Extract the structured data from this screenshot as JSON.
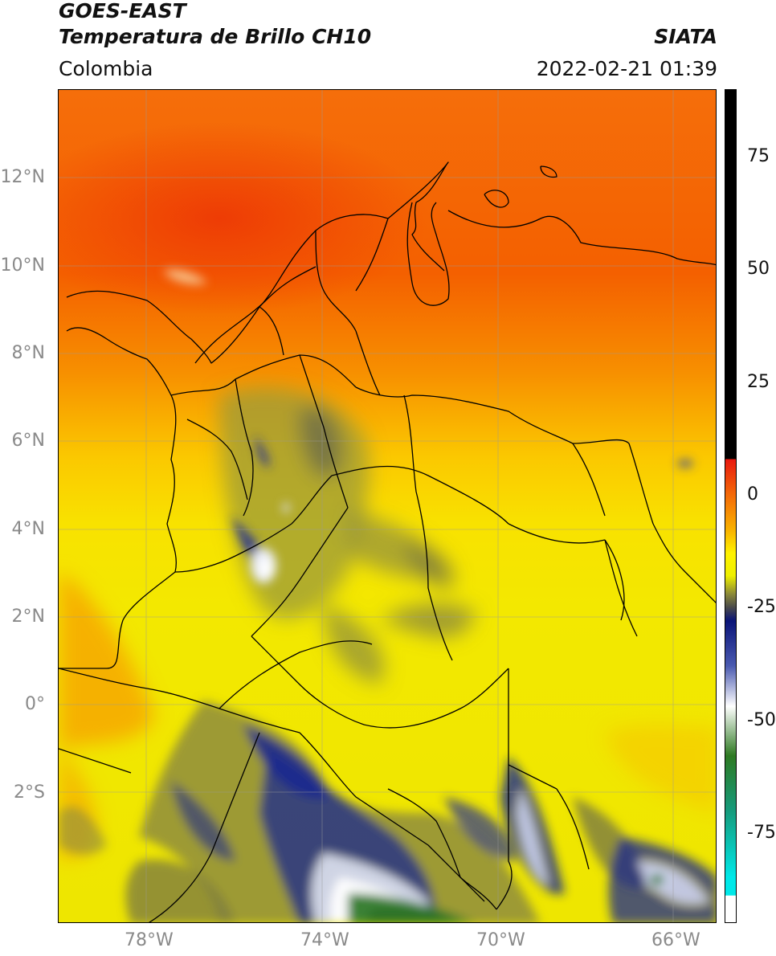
{
  "header": {
    "satellite": "GOES-EAST",
    "product": "Temperatura de Brillo CH10",
    "region": "Colombia",
    "agency": "SIATA",
    "datetime": "2022-02-21 01:39"
  },
  "map": {
    "lon_range": [
      -80,
      -65
    ],
    "lat_range": [
      -5,
      14
    ],
    "x_ticks": [
      {
        "lon": -78,
        "label": "78°W"
      },
      {
        "lon": -74,
        "label": "74°W"
      },
      {
        "lon": -70,
        "label": "70°W"
      },
      {
        "lon": -66,
        "label": "66°W"
      }
    ],
    "y_ticks": [
      {
        "lat": 12,
        "label": "12°N"
      },
      {
        "lat": 10,
        "label": "10°N"
      },
      {
        "lat": 8,
        "label": "8°N"
      },
      {
        "lat": 6,
        "label": "6°N"
      },
      {
        "lat": 4,
        "label": "4°N"
      },
      {
        "lat": 2,
        "label": "2°N"
      },
      {
        "lat": 0,
        "label": "0°"
      },
      {
        "lat": -2,
        "label": "2°S"
      }
    ],
    "gridlines": true
  },
  "colorbar": {
    "ticks": [
      {
        "value": 75,
        "label": "75"
      },
      {
        "value": 50,
        "label": "50"
      },
      {
        "value": 25,
        "label": "25"
      },
      {
        "value": 0,
        "label": "0"
      },
      {
        "value": -25,
        "label": "-25"
      },
      {
        "value": -50,
        "label": "-50"
      },
      {
        "value": -75,
        "label": "-75"
      }
    ],
    "range": [
      -95,
      90
    ],
    "stops": [
      {
        "value": 90,
        "color": "#000000"
      },
      {
        "value": 8,
        "color": "#000000"
      },
      {
        "value": 7.9,
        "color": "#e8190f"
      },
      {
        "value": 0,
        "color": "#f46a08"
      },
      {
        "value": -8,
        "color": "#f9b400"
      },
      {
        "value": -13,
        "color": "#fff200"
      },
      {
        "value": -18,
        "color": "#eef000"
      },
      {
        "value": -22,
        "color": "#8c8a38"
      },
      {
        "value": -25,
        "color": "#4a4a4a"
      },
      {
        "value": -28,
        "color": "#0a1478"
      },
      {
        "value": -38,
        "color": "#4a5ab0"
      },
      {
        "value": -47,
        "color": "#ffffff"
      },
      {
        "value": -58,
        "color": "#2e7a22"
      },
      {
        "value": -70,
        "color": "#169a7a"
      },
      {
        "value": -85,
        "color": "#00e8e8"
      },
      {
        "value": -89,
        "color": "#00e8e8"
      },
      {
        "value": -89.1,
        "color": "#ffffff"
      },
      {
        "value": -95,
        "color": "#ffffff"
      }
    ]
  }
}
